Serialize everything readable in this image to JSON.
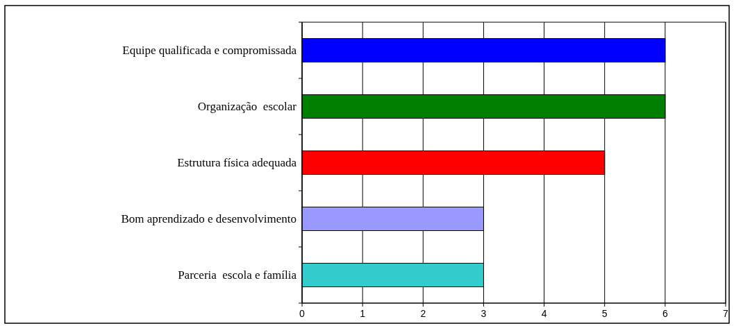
{
  "chart_data": {
    "type": "bar",
    "orientation": "horizontal",
    "categories": [
      "Equipe qualificada e compromissada",
      "Organização  escolar",
      "Estrutura física adequada",
      "Bom aprendizado e desenvolvimento",
      "Parceria  escola e família"
    ],
    "values": [
      6,
      6,
      5,
      3,
      3
    ],
    "colors": [
      "#0000ff",
      "#008000",
      "#ff0000",
      "#9999ff",
      "#33cccc"
    ],
    "xlim": [
      0,
      7
    ],
    "xticks": [
      0,
      1,
      2,
      3,
      4,
      5,
      6,
      7
    ],
    "grid": "x"
  }
}
